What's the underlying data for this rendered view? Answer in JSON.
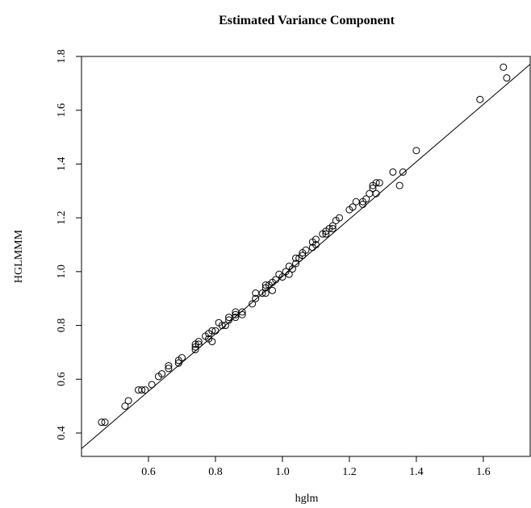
{
  "chart_data": {
    "type": "scatter",
    "title": "Estimated Variance Component",
    "xlabel": "hglm",
    "ylabel": "HGLMMM",
    "color": "#000000",
    "x": [
      0.46,
      0.47,
      0.53,
      0.54,
      0.57,
      0.58,
      0.59,
      0.61,
      0.63,
      0.64,
      0.66,
      0.66,
      0.69,
      0.69,
      0.7,
      0.74,
      0.74,
      0.75,
      0.75,
      0.74,
      0.77,
      0.78,
      0.78,
      0.79,
      0.79,
      0.8,
      0.81,
      0.82,
      0.83,
      0.84,
      0.84,
      0.86,
      0.86,
      0.86,
      0.88,
      0.88,
      0.91,
      0.92,
      0.92,
      0.94,
      0.95,
      0.95,
      0.95,
      0.96,
      0.97,
      0.97,
      0.98,
      0.99,
      1.0,
      1.01,
      1.02,
      1.02,
      1.03,
      1.04,
      1.04,
      1.05,
      1.06,
      1.06,
      1.07,
      1.09,
      1.09,
      1.1,
      1.1,
      1.12,
      1.13,
      1.13,
      1.14,
      1.15,
      1.15,
      1.16,
      1.17,
      1.2,
      1.21,
      1.22,
      1.24,
      1.24,
      1.25,
      1.26,
      1.27,
      1.27,
      1.28,
      1.28,
      1.29,
      1.33,
      1.35,
      1.36,
      1.4,
      1.59,
      1.66,
      1.67
    ],
    "values": [
      0.44,
      0.44,
      0.5,
      0.52,
      0.56,
      0.56,
      0.56,
      0.58,
      0.61,
      0.62,
      0.65,
      0.64,
      0.67,
      0.66,
      0.68,
      0.71,
      0.72,
      0.73,
      0.74,
      0.73,
      0.76,
      0.77,
      0.75,
      0.74,
      0.78,
      0.78,
      0.81,
      0.8,
      0.8,
      0.82,
      0.83,
      0.84,
      0.85,
      0.83,
      0.85,
      0.84,
      0.88,
      0.92,
      0.9,
      0.92,
      0.95,
      0.94,
      0.92,
      0.95,
      0.96,
      0.93,
      0.97,
      0.99,
      0.98,
      1.0,
      1.02,
      0.99,
      1.01,
      1.03,
      1.05,
      1.05,
      1.06,
      1.07,
      1.08,
      1.09,
      1.11,
      1.12,
      1.1,
      1.14,
      1.15,
      1.14,
      1.16,
      1.16,
      1.17,
      1.19,
      1.2,
      1.23,
      1.24,
      1.26,
      1.26,
      1.25,
      1.27,
      1.29,
      1.31,
      1.32,
      1.33,
      1.29,
      1.33,
      1.37,
      1.32,
      1.37,
      1.45,
      1.64,
      1.76,
      1.72
    ],
    "line": {
      "x": [
        0.4,
        1.74
      ],
      "y": [
        0.342,
        1.771
      ]
    },
    "xlim": [
      0.4,
      1.74
    ],
    "ylim": [
      0.313,
      1.8
    ],
    "xticks": [
      0.6,
      0.8,
      {
        "value": 1.0,
        "label": "1.0"
      },
      1.2,
      1.4,
      1.6
    ],
    "yticks": [
      0.4,
      0.6,
      0.8,
      {
        "value": 1.0,
        "label": "1.0"
      },
      1.2,
      1.4,
      1.6,
      1.8
    ]
  }
}
